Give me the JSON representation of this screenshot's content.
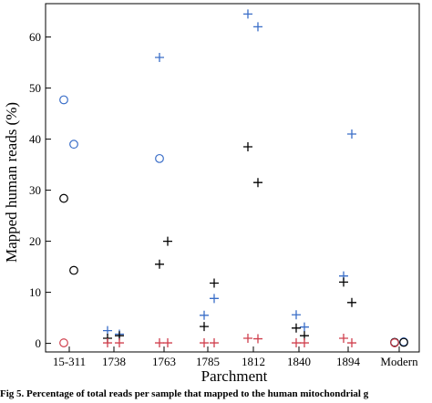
{
  "chart_data": {
    "type": "scatter",
    "title": "",
    "xlabel": "Parchment",
    "ylabel": "Mapped human reads (%)",
    "ylim": [
      -1,
      68
    ],
    "yticks": [
      0,
      10,
      20,
      30,
      40,
      50,
      60
    ],
    "categories": [
      "15-311",
      "1738",
      "1763",
      "1785",
      "1812",
      "1840",
      "1894",
      "Modern"
    ],
    "grid": false,
    "legend": "none",
    "colors": {
      "blue": "#3a6ec8",
      "black": "#000000",
      "red": "#d0404e"
    },
    "series": [
      {
        "marker": "plus",
        "color": "blue",
        "points": [
          {
            "x": "1738",
            "y": 2.5
          },
          {
            "x": "1738",
            "y": 1.8
          },
          {
            "x": "1763",
            "y": 56.0
          },
          {
            "x": "1785",
            "y": 5.5
          },
          {
            "x": "1785",
            "y": 8.8
          },
          {
            "x": "1812",
            "y": 64.5
          },
          {
            "x": "1812",
            "y": 62.0
          },
          {
            "x": "1840",
            "y": 5.6
          },
          {
            "x": "1840",
            "y": 3.2
          },
          {
            "x": "1894",
            "y": 13.2
          },
          {
            "x": "1894",
            "y": 41.0
          }
        ]
      },
      {
        "marker": "plus",
        "color": "black",
        "points": [
          {
            "x": "1738",
            "y": 1.0
          },
          {
            "x": "1738",
            "y": 1.5
          },
          {
            "x": "1763",
            "y": 15.5
          },
          {
            "x": "1763",
            "y": 20.0
          },
          {
            "x": "1785",
            "y": 3.3
          },
          {
            "x": "1785",
            "y": 11.8
          },
          {
            "x": "1812",
            "y": 38.5
          },
          {
            "x": "1812",
            "y": 31.5
          },
          {
            "x": "1840",
            "y": 3.0
          },
          {
            "x": "1840",
            "y": 1.5
          },
          {
            "x": "1894",
            "y": 12.0
          },
          {
            "x": "1894",
            "y": 8.0
          }
        ]
      },
      {
        "marker": "plus",
        "color": "red",
        "points": [
          {
            "x": "1738",
            "y": 0.1
          },
          {
            "x": "1738",
            "y": 0.1
          },
          {
            "x": "1763",
            "y": 0.1
          },
          {
            "x": "1763",
            "y": 0.1
          },
          {
            "x": "1785",
            "y": 0.1
          },
          {
            "x": "1785",
            "y": 0.1
          },
          {
            "x": "1812",
            "y": 1.0
          },
          {
            "x": "1812",
            "y": 0.9
          },
          {
            "x": "1840",
            "y": 0.1
          },
          {
            "x": "1840",
            "y": 0.1
          },
          {
            "x": "1894",
            "y": 1.0
          },
          {
            "x": "1894",
            "y": 0.1
          }
        ]
      },
      {
        "marker": "circle",
        "color": "blue",
        "points": [
          {
            "x": "15-311",
            "y": 47.7
          },
          {
            "x": "15-311",
            "y": 39.0
          },
          {
            "x": "1763",
            "y": 36.2
          },
          {
            "x": "Modern",
            "y": 0.2
          },
          {
            "x": "Modern",
            "y": 0.3
          }
        ]
      },
      {
        "marker": "circle",
        "color": "black",
        "points": [
          {
            "x": "15-311",
            "y": 28.4
          },
          {
            "x": "15-311",
            "y": 14.3
          },
          {
            "x": "Modern",
            "y": 0.2
          },
          {
            "x": "Modern",
            "y": 0.2
          }
        ]
      },
      {
        "marker": "circle",
        "color": "red",
        "points": [
          {
            "x": "15-311",
            "y": 0.1
          },
          {
            "x": "Modern",
            "y": 0.1
          }
        ]
      }
    ]
  },
  "caption": "Fig 5. Percentage of total reads per sample that mapped to the human mitochondrial g"
}
